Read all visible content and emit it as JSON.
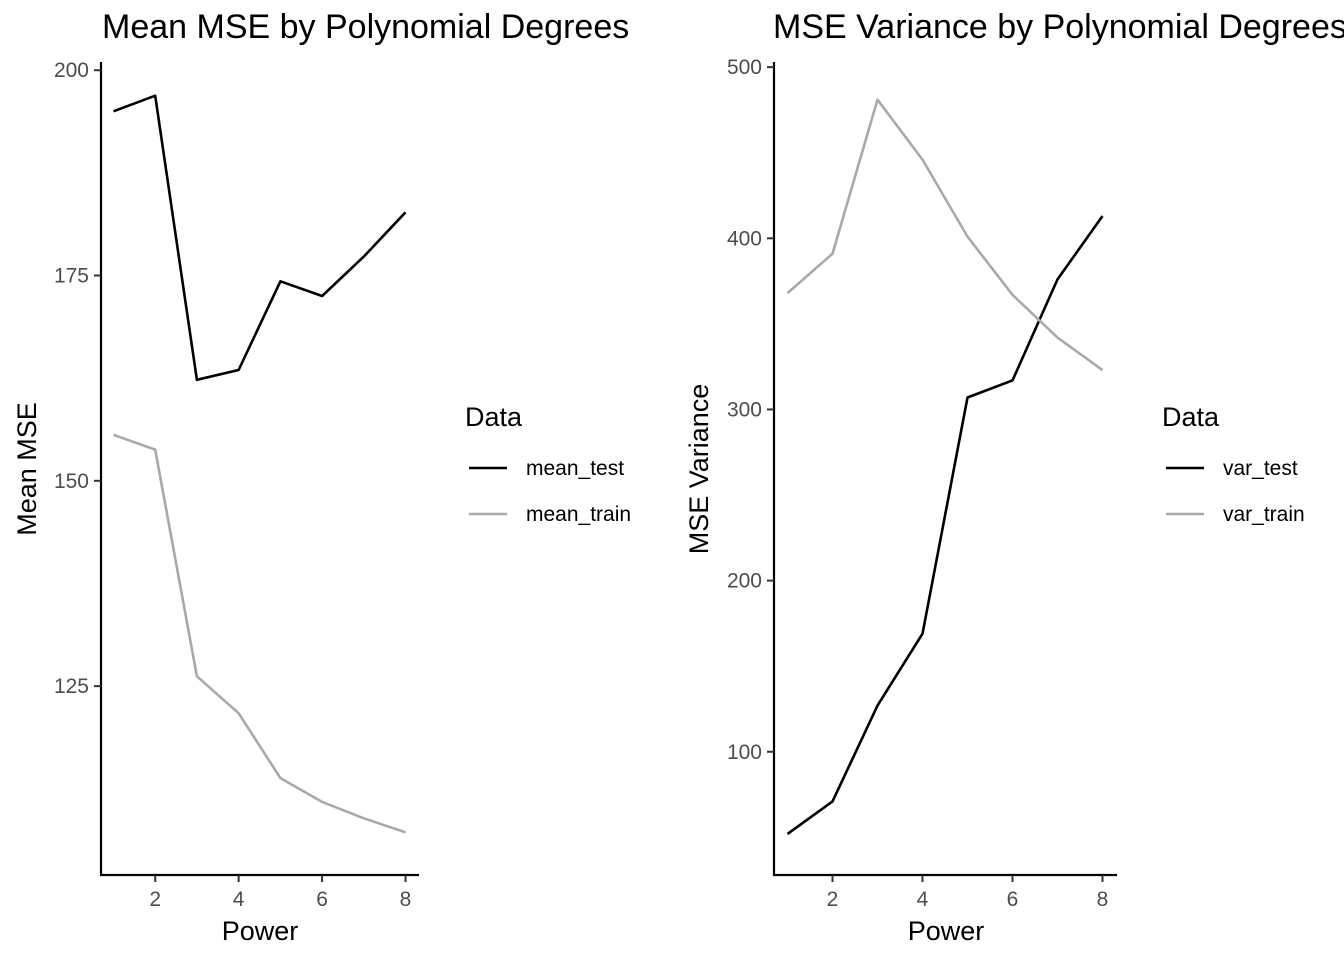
{
  "chart_data": [
    {
      "type": "line",
      "title": "Mean MSE by Polynomial Degrees",
      "xlabel": "Power",
      "ylabel": "Mean MSE",
      "xlim": [
        0.7,
        8.3
      ],
      "ylim": [
        102,
        201
      ],
      "xticks": [
        2,
        4,
        6,
        8
      ],
      "yticks": [
        125,
        150,
        175,
        200
      ],
      "grid": false,
      "legend": {
        "title": "Data",
        "placement": "right"
      },
      "x": [
        1,
        2,
        3,
        4,
        5,
        6,
        7,
        8
      ],
      "series": [
        {
          "name": "mean_test",
          "color": "#000000",
          "values": [
            195.0,
            196.9,
            162.3,
            163.5,
            174.3,
            172.5,
            177.3,
            182.7
          ]
        },
        {
          "name": "mean_train",
          "color": "#a9a9a9",
          "values": [
            155.6,
            153.8,
            126.2,
            121.7,
            113.8,
            110.9,
            108.9,
            107.2
          ]
        }
      ]
    },
    {
      "type": "line",
      "title": "MSE Variance by Polynomial Degrees",
      "xlabel": "Power",
      "ylabel": "MSE Variance",
      "xlim": [
        0.7,
        8.3
      ],
      "ylim": [
        28,
        503
      ],
      "xticks": [
        2,
        4,
        6,
        8
      ],
      "yticks": [
        100,
        200,
        300,
        400,
        500
      ],
      "grid": false,
      "legend": {
        "title": "Data",
        "placement": "right"
      },
      "x": [
        1,
        2,
        3,
        4,
        5,
        6,
        7,
        8
      ],
      "series": [
        {
          "name": "var_test",
          "color": "#000000",
          "values": [
            52,
            71,
            127,
            169,
            307,
            317,
            376,
            413
          ]
        },
        {
          "name": "var_train",
          "color": "#a9a9a9",
          "values": [
            368,
            391,
            481,
            446,
            401,
            367,
            342,
            323
          ]
        }
      ]
    }
  ]
}
